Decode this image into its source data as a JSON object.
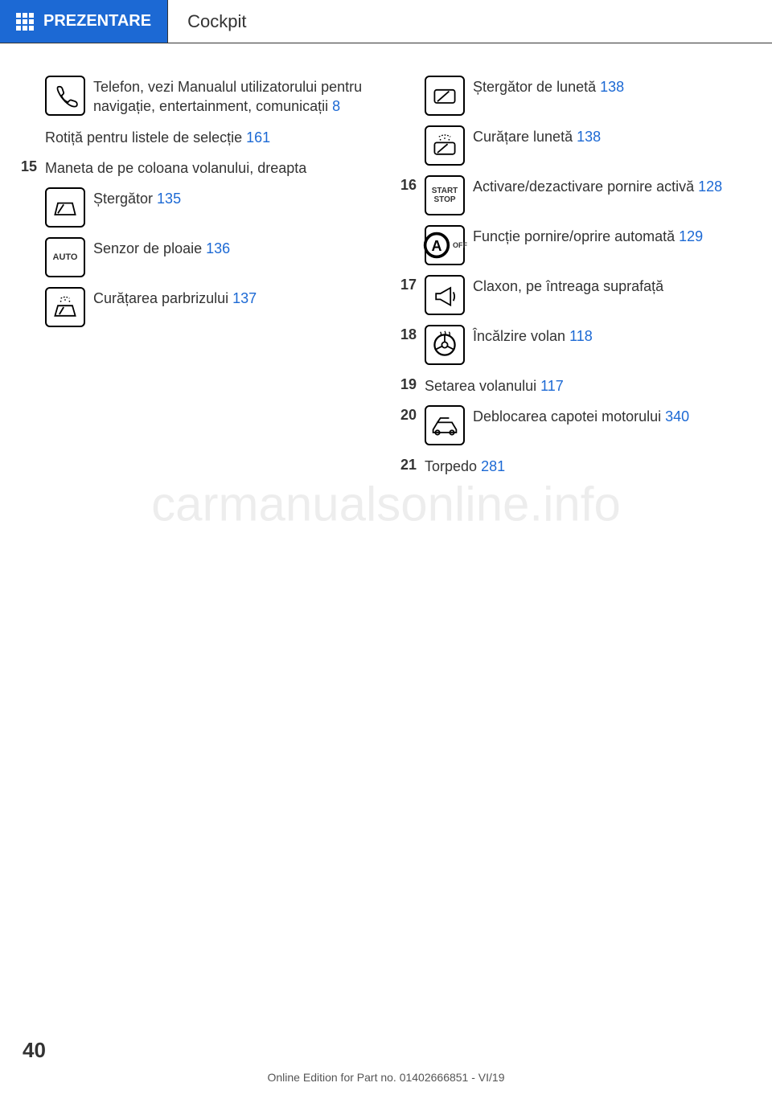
{
  "colors": {
    "accent": "#1c69d4",
    "text": "#333333",
    "background": "#ffffff"
  },
  "header": {
    "tab_label": "PREZENTARE",
    "title": "Cockpit"
  },
  "left_column": [
    {
      "num": "",
      "icon": "phone",
      "text_parts": [
        {
          "t": "Telefon, vezi Manualul utilizatorului pentru navigație, entertainment, co­municații   ",
          "ref": false
        },
        {
          "t": "8",
          "ref": true
        }
      ]
    },
    {
      "num": "",
      "icon": null,
      "indent": true,
      "text_parts": [
        {
          "t": "Rotiță pentru listele de selecție   ",
          "ref": false
        },
        {
          "t": "161",
          "ref": true
        }
      ]
    },
    {
      "num": "15",
      "icon": null,
      "text_parts": [
        {
          "t": "Maneta de pe coloana volanului, dreapta",
          "ref": false
        }
      ]
    },
    {
      "num": "",
      "icon": "wiper",
      "text_parts": [
        {
          "t": "Ștergător   ",
          "ref": false
        },
        {
          "t": "135",
          "ref": true
        }
      ]
    },
    {
      "num": "",
      "icon": "auto",
      "text_parts": [
        {
          "t": "Senzor de ploaie   ",
          "ref": false
        },
        {
          "t": "136",
          "ref": true
        }
      ]
    },
    {
      "num": "",
      "icon": "washer",
      "text_parts": [
        {
          "t": "Curățarea parbrizului   ",
          "ref": false
        },
        {
          "t": "137",
          "ref": true
        }
      ]
    }
  ],
  "right_column": [
    {
      "num": "",
      "icon": "rear-wiper",
      "text_parts": [
        {
          "t": "Ștergător de lunetă   ",
          "ref": false
        },
        {
          "t": "138",
          "ref": true
        }
      ]
    },
    {
      "num": "",
      "icon": "rear-washer",
      "text_parts": [
        {
          "t": "Curățare lunetă   ",
          "ref": false
        },
        {
          "t": "138",
          "ref": true
        }
      ]
    },
    {
      "num": "16",
      "icon": "startstop",
      "text_parts": [
        {
          "t": "Activare/dezactivare pornire ac­tivă   ",
          "ref": false
        },
        {
          "t": "128",
          "ref": true
        }
      ]
    },
    {
      "num": "",
      "icon": "aoff",
      "text_parts": [
        {
          "t": "Funcție pornire/oprire auto­mată   ",
          "ref": false
        },
        {
          "t": "129",
          "ref": true
        }
      ]
    },
    {
      "num": "17",
      "icon": "horn",
      "text_parts": [
        {
          "t": "Claxon, pe întreaga suprafață",
          "ref": false
        }
      ]
    },
    {
      "num": "18",
      "icon": "steering-heat",
      "text_parts": [
        {
          "t": "Încălzire volan   ",
          "ref": false
        },
        {
          "t": "118",
          "ref": true
        }
      ]
    },
    {
      "num": "19",
      "icon": null,
      "text_parts": [
        {
          "t": "Setarea volanului   ",
          "ref": false
        },
        {
          "t": "117",
          "ref": true
        }
      ]
    },
    {
      "num": "20",
      "icon": "hood",
      "text_parts": [
        {
          "t": "Deblocarea capotei motorului   ",
          "ref": false
        },
        {
          "t": "340",
          "ref": true
        }
      ]
    },
    {
      "num": "21",
      "icon": null,
      "text_parts": [
        {
          "t": "Torpedo   ",
          "ref": false
        },
        {
          "t": "281",
          "ref": true
        }
      ]
    }
  ],
  "page_number": "40",
  "footer": "Online Edition for Part no. 01402666851 - VI/19",
  "watermark": "carmanualsonline.info",
  "icons": {
    "auto_text": "AUTO",
    "startstop_text": "START\nSTOP",
    "aoff_text": "OFF"
  }
}
